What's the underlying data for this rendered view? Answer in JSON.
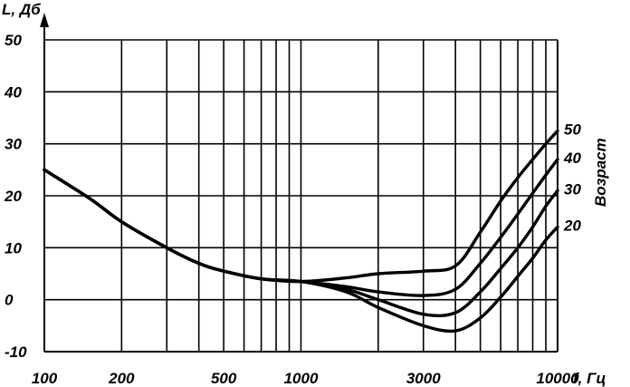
{
  "chart_data": {
    "type": "line",
    "title": "",
    "xlabel": "f, Гц",
    "ylabel": "L, Дб",
    "x_scale": "log",
    "xlim": [
      100,
      10000
    ],
    "ylim": [
      -10,
      50
    ],
    "x_ticks": [
      100,
      200,
      500,
      1000,
      3000,
      10000
    ],
    "x_tick_labels": [
      "100",
      "200",
      "500",
      "1000",
      "3000",
      "10000"
    ],
    "x_grid": [
      100,
      200,
      300,
      400,
      500,
      600,
      700,
      800,
      900,
      1000,
      2000,
      3000,
      4000,
      5000,
      6000,
      7000,
      8000,
      9000,
      10000
    ],
    "y_ticks": [
      -10,
      0,
      10,
      20,
      30,
      40,
      50
    ],
    "y_tick_labels": [
      "-10",
      "0",
      "10",
      "20",
      "30",
      "40",
      "50"
    ],
    "grid": true,
    "legend_title": "Возраст",
    "legend_placement": "right",
    "series": [
      {
        "name": "50",
        "x": [
          100,
          150,
          200,
          300,
          400,
          500,
          700,
          1000,
          1500,
          2000,
          3000,
          4000,
          5000,
          6000,
          7000,
          8000,
          9000,
          10000
        ],
        "y": [
          25,
          19.5,
          15,
          10,
          7,
          5.5,
          4,
          3.5,
          4.2,
          5,
          5.5,
          6.5,
          13,
          19,
          23.5,
          27,
          30,
          32.5
        ]
      },
      {
        "name": "40",
        "x": [
          100,
          150,
          200,
          300,
          400,
          500,
          700,
          1000,
          1500,
          2000,
          3000,
          4000,
          5000,
          6000,
          7000,
          8000,
          9000,
          10000
        ],
        "y": [
          25,
          19.5,
          15,
          10,
          7,
          5.5,
          4,
          3.5,
          2.5,
          1.5,
          0.8,
          2,
          7,
          12,
          16.5,
          20.5,
          24,
          27
        ]
      },
      {
        "name": "30",
        "x": [
          100,
          150,
          200,
          300,
          400,
          500,
          700,
          1000,
          1500,
          2000,
          3000,
          4000,
          5000,
          6000,
          7000,
          8000,
          9000,
          10000
        ],
        "y": [
          25,
          19.5,
          15,
          10,
          7,
          5.5,
          4,
          3.5,
          2,
          0,
          -2.8,
          -2.5,
          1.5,
          6,
          10,
          14,
          18,
          21
        ]
      },
      {
        "name": "20",
        "x": [
          100,
          150,
          200,
          300,
          400,
          500,
          700,
          1000,
          1500,
          2000,
          3000,
          4000,
          5000,
          6000,
          7000,
          8000,
          9000,
          10000
        ],
        "y": [
          25,
          19.5,
          15,
          10,
          7,
          5.5,
          4,
          3.5,
          1.5,
          -1.5,
          -5,
          -6,
          -3.5,
          0.5,
          4.5,
          8,
          11.5,
          14
        ]
      }
    ]
  }
}
